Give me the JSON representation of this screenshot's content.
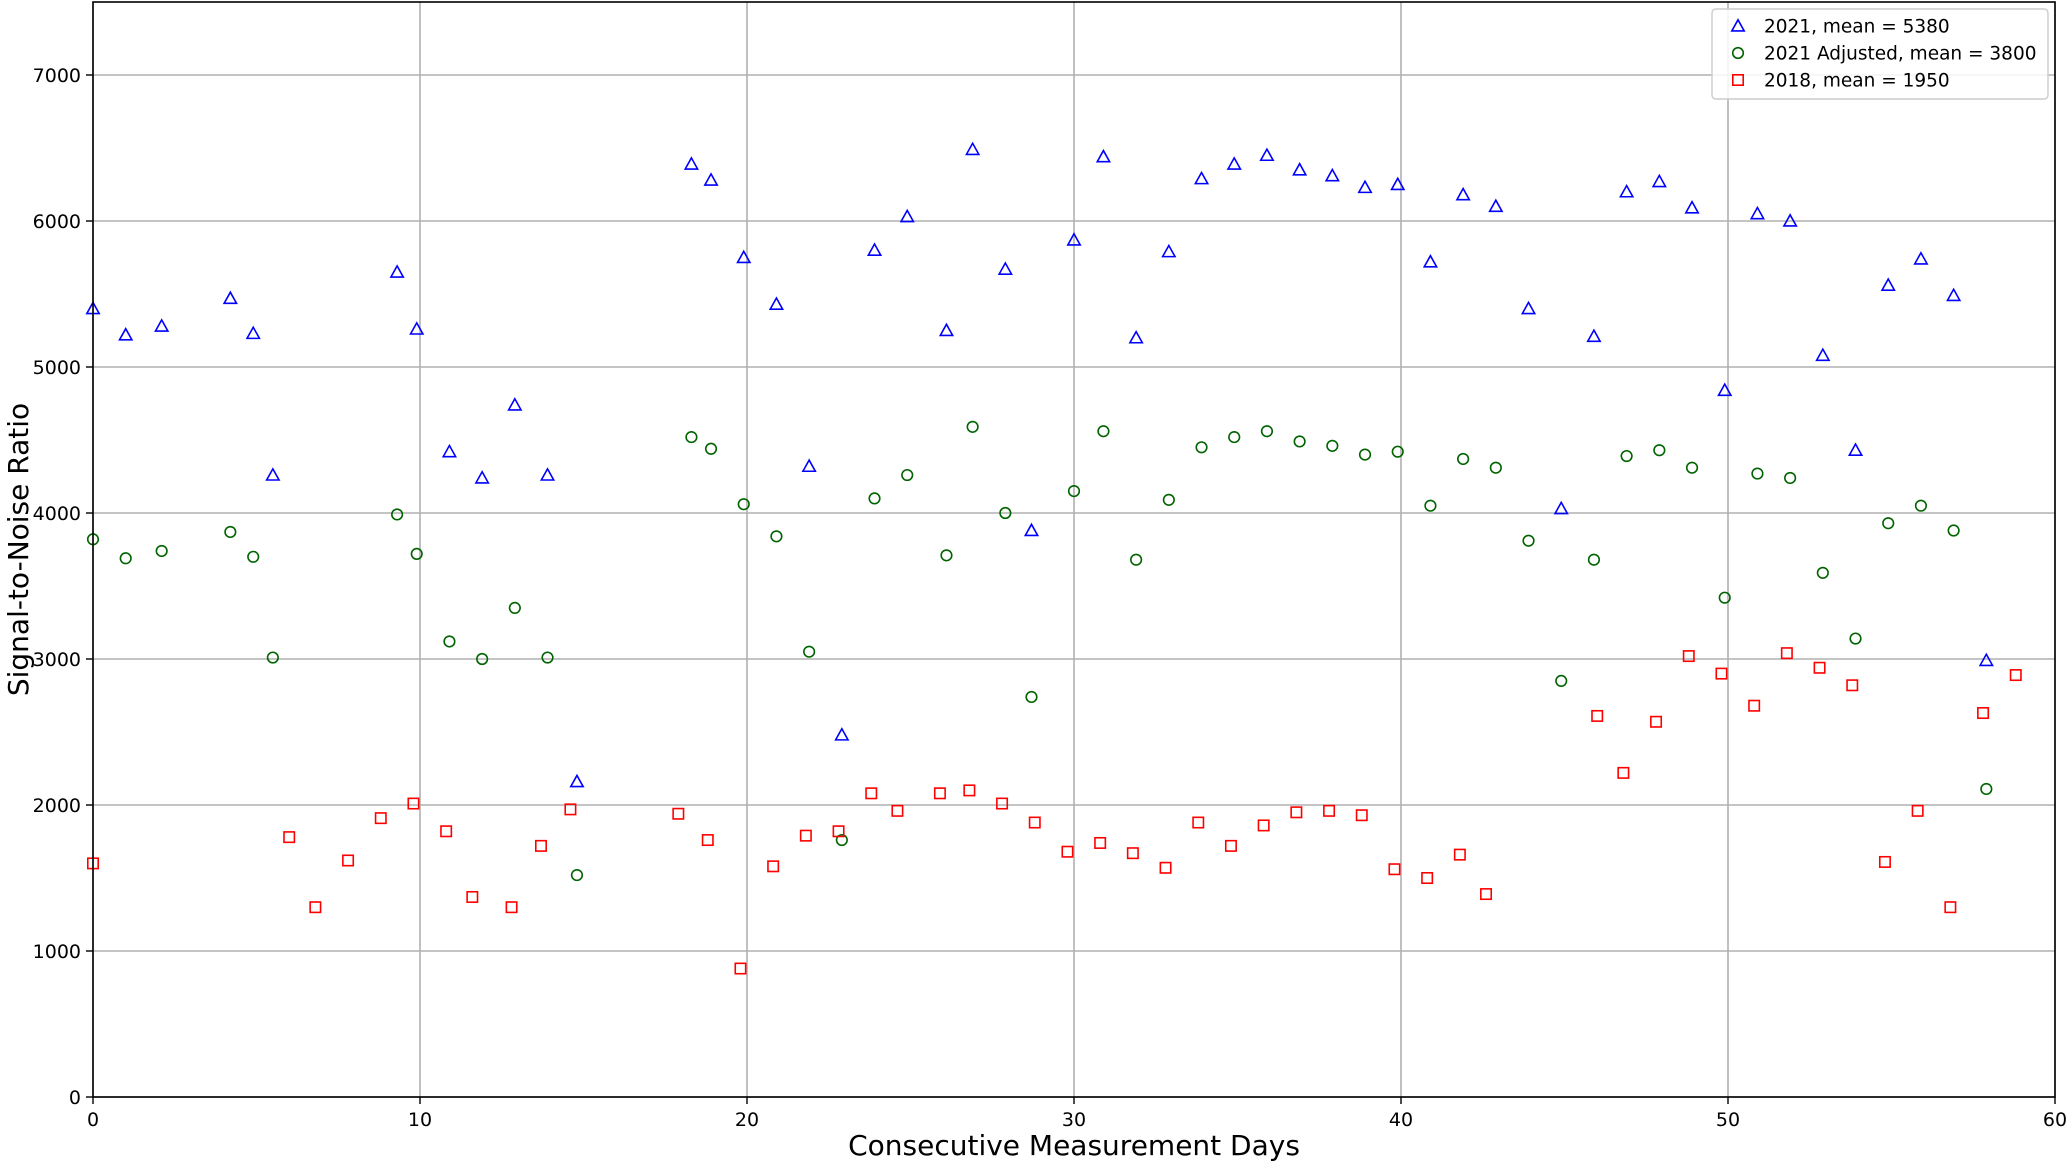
{
  "chart_data": {
    "type": "scatter",
    "title": "",
    "xlabel": "Consecutive Measurement Days",
    "ylabel": "Signal-to-Noise Ratio",
    "xlim": [
      0,
      60
    ],
    "ylim": [
      0,
      7500
    ],
    "xticks": [
      0,
      10,
      20,
      30,
      40,
      50,
      60
    ],
    "yticks": [
      0,
      1000,
      2000,
      3000,
      4000,
      5000,
      6000,
      7000
    ],
    "grid": true,
    "legend_position": "top-right",
    "series": [
      {
        "name": "2021, mean = 5380",
        "marker": "triangle",
        "color": "#0000ff",
        "points": [
          [
            0,
            5400
          ],
          [
            1,
            5220
          ],
          [
            2.1,
            5280
          ],
          [
            4.2,
            5470
          ],
          [
            4.9,
            5230
          ],
          [
            5.5,
            4260
          ],
          [
            9.3,
            5650
          ],
          [
            9.9,
            5260
          ],
          [
            10.9,
            4420
          ],
          [
            11.9,
            4240
          ],
          [
            12.9,
            4740
          ],
          [
            13.9,
            4260
          ],
          [
            14.8,
            2160
          ],
          [
            18.3,
            6390
          ],
          [
            18.9,
            6280
          ],
          [
            19.9,
            5750
          ],
          [
            20.9,
            5430
          ],
          [
            21.9,
            4320
          ],
          [
            22.9,
            2480
          ],
          [
            23.9,
            5800
          ],
          [
            24.9,
            6030
          ],
          [
            26.1,
            5250
          ],
          [
            26.9,
            6490
          ],
          [
            27.9,
            5670
          ],
          [
            28.7,
            3880
          ],
          [
            30,
            5870
          ],
          [
            30.9,
            6440
          ],
          [
            31.9,
            5200
          ],
          [
            32.9,
            5790
          ],
          [
            33.9,
            6290
          ],
          [
            34.9,
            6390
          ],
          [
            35.9,
            6450
          ],
          [
            36.9,
            6350
          ],
          [
            37.9,
            6310
          ],
          [
            38.9,
            6230
          ],
          [
            39.9,
            6250
          ],
          [
            40.9,
            5720
          ],
          [
            41.9,
            6180
          ],
          [
            42.9,
            6100
          ],
          [
            43.9,
            5400
          ],
          [
            44.9,
            4030
          ],
          [
            45.9,
            5210
          ],
          [
            46.9,
            6200
          ],
          [
            47.9,
            6270
          ],
          [
            48.9,
            6090
          ],
          [
            49.9,
            4840
          ],
          [
            50.9,
            6050
          ],
          [
            51.9,
            6000
          ],
          [
            52.9,
            5080
          ],
          [
            53.9,
            4430
          ],
          [
            54.9,
            5560
          ],
          [
            55.9,
            5740
          ],
          [
            56.9,
            5490
          ],
          [
            57.9,
            2990
          ]
        ]
      },
      {
        "name": "2021 Adjusted, mean = 3800",
        "marker": "circle",
        "color": "#006400",
        "points": [
          [
            0,
            3820
          ],
          [
            1,
            3690
          ],
          [
            2.1,
            3740
          ],
          [
            4.2,
            3870
          ],
          [
            4.9,
            3700
          ],
          [
            5.5,
            3010
          ],
          [
            9.3,
            3990
          ],
          [
            9.9,
            3720
          ],
          [
            10.9,
            3120
          ],
          [
            11.9,
            3000
          ],
          [
            12.9,
            3350
          ],
          [
            13.9,
            3010
          ],
          [
            14.8,
            1520
          ],
          [
            18.3,
            4520
          ],
          [
            18.9,
            4440
          ],
          [
            19.9,
            4060
          ],
          [
            20.9,
            3840
          ],
          [
            21.9,
            3050
          ],
          [
            22.9,
            1760
          ],
          [
            23.9,
            4100
          ],
          [
            24.9,
            4260
          ],
          [
            26.1,
            3710
          ],
          [
            26.9,
            4590
          ],
          [
            27.9,
            4000
          ],
          [
            28.7,
            2740
          ],
          [
            30,
            4150
          ],
          [
            30.9,
            4560
          ],
          [
            31.9,
            3680
          ],
          [
            32.9,
            4090
          ],
          [
            33.9,
            4450
          ],
          [
            34.9,
            4520
          ],
          [
            35.9,
            4560
          ],
          [
            36.9,
            4490
          ],
          [
            37.9,
            4460
          ],
          [
            38.9,
            4400
          ],
          [
            39.9,
            4420
          ],
          [
            40.9,
            4050
          ],
          [
            41.9,
            4370
          ],
          [
            42.9,
            4310
          ],
          [
            43.9,
            3810
          ],
          [
            44.9,
            2850
          ],
          [
            45.9,
            3680
          ],
          [
            46.9,
            4390
          ],
          [
            47.9,
            4430
          ],
          [
            48.9,
            4310
          ],
          [
            49.9,
            3420
          ],
          [
            50.9,
            4270
          ],
          [
            51.9,
            4240
          ],
          [
            52.9,
            3590
          ],
          [
            53.9,
            3140
          ],
          [
            54.9,
            3930
          ],
          [
            55.9,
            4050
          ],
          [
            56.9,
            3880
          ],
          [
            57.9,
            2110
          ]
        ]
      },
      {
        "name": "2018, mean = 1950",
        "marker": "square",
        "color": "#ff0000",
        "points": [
          [
            0,
            1600
          ],
          [
            6,
            1780
          ],
          [
            6.8,
            1300
          ],
          [
            7.8,
            1620
          ],
          [
            8.8,
            1910
          ],
          [
            9.8,
            2010
          ],
          [
            10.8,
            1820
          ],
          [
            11.6,
            1370
          ],
          [
            12.8,
            1300
          ],
          [
            13.7,
            1720
          ],
          [
            14.6,
            1970
          ],
          [
            17.9,
            1940
          ],
          [
            18.8,
            1760
          ],
          [
            19.8,
            880
          ],
          [
            20.8,
            1580
          ],
          [
            21.8,
            1790
          ],
          [
            22.8,
            1820
          ],
          [
            23.8,
            2080
          ],
          [
            24.6,
            1960
          ],
          [
            25.9,
            2080
          ],
          [
            26.8,
            2100
          ],
          [
            27.8,
            2010
          ],
          [
            28.8,
            1880
          ],
          [
            29.8,
            1680
          ],
          [
            30.8,
            1740
          ],
          [
            31.8,
            1670
          ],
          [
            32.8,
            1570
          ],
          [
            33.8,
            1880
          ],
          [
            34.8,
            1720
          ],
          [
            35.8,
            1860
          ],
          [
            36.8,
            1950
          ],
          [
            37.8,
            1960
          ],
          [
            38.8,
            1930
          ],
          [
            39.8,
            1560
          ],
          [
            40.8,
            1500
          ],
          [
            41.8,
            1660
          ],
          [
            42.6,
            1390
          ],
          [
            46,
            2610
          ],
          [
            46.8,
            2220
          ],
          [
            47.8,
            2570
          ],
          [
            48.8,
            3020
          ],
          [
            49.8,
            2900
          ],
          [
            50.8,
            2680
          ],
          [
            51.8,
            3040
          ],
          [
            52.8,
            2940
          ],
          [
            53.8,
            2820
          ],
          [
            54.8,
            1610
          ],
          [
            55.8,
            1960
          ],
          [
            56.8,
            1300
          ],
          [
            57.8,
            2630
          ],
          [
            58.8,
            2890
          ]
        ]
      }
    ]
  }
}
